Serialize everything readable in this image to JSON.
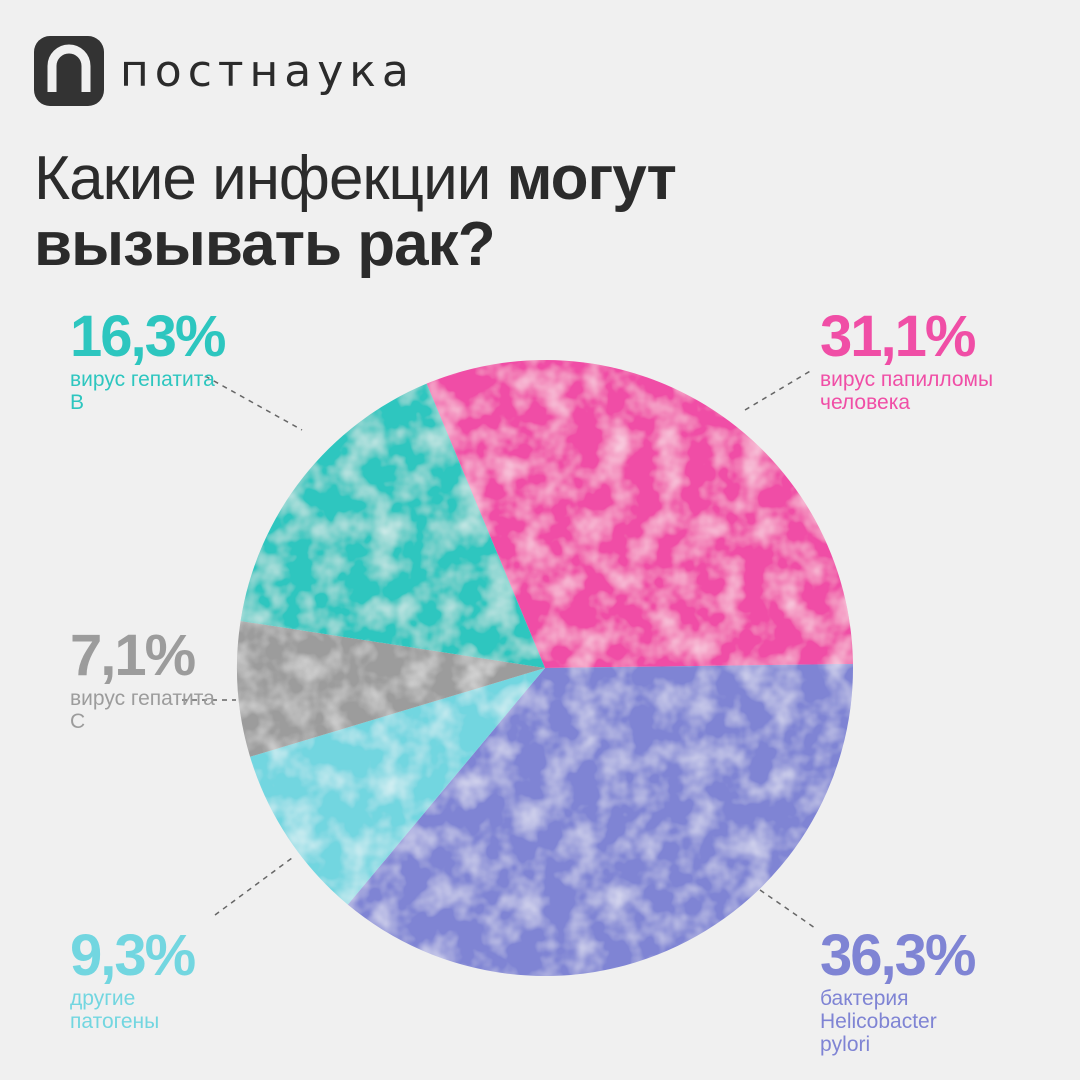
{
  "brand": "постнаука",
  "chart_data": {
    "type": "pie",
    "title": [
      "Какие инфекции",
      "могут вызывать рак?"
    ],
    "categories": [
      "вирус папилломы человека",
      "бактерия Helicobacter pylori",
      "другие патогены",
      "вирус гепатита C",
      "вирус гепатита B"
    ],
    "values": [
      31.1,
      36.3,
      9.3,
      7.1,
      16.3
    ],
    "value_labels": [
      "31,1%",
      "36,3%",
      "9,3%",
      "7,1%",
      "16,3%"
    ],
    "colors": [
      "#f04ea6",
      "#7f84d4",
      "#72d6e0",
      "#9c9c9c",
      "#2dc6bf"
    ]
  }
}
